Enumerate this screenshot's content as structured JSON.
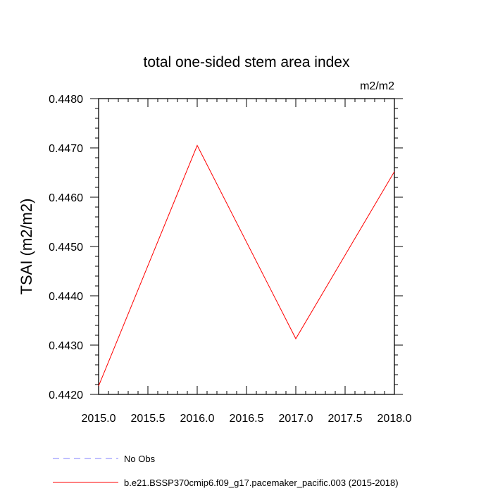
{
  "chart_data": {
    "type": "line",
    "title": "total one-sided stem area index",
    "units": "m2/m2",
    "xlabel": "",
    "ylabel": "TSAI  (m2/m2)",
    "xlim": [
      2015.0,
      2018.0
    ],
    "ylim": [
      0.442,
      0.448
    ],
    "xticks": [
      "2015.0",
      "2015.5",
      "2016.0",
      "2016.5",
      "2017.0",
      "2017.5",
      "2018.0"
    ],
    "yticks": [
      "0.4420",
      "0.4430",
      "0.4440",
      "0.4450",
      "0.4460",
      "0.4470",
      "0.4480"
    ],
    "series": [
      {
        "name": "b.e21.BSSP370cmip6.f09_g17.pacemaker_pacific.003 (2015-2018)",
        "color": "#ff0000",
        "style": "solid",
        "x": [
          2015,
          2016,
          2017,
          2018
        ],
        "y": [
          0.44217,
          0.44705,
          0.44313,
          0.44652
        ]
      }
    ],
    "legend": [
      {
        "label": "No Obs",
        "color": "#8080ff",
        "style": "dashed"
      },
      {
        "label": "b.e21.BSSP370cmip6.f09_g17.pacemaker_pacific.003 (2015-2018)",
        "color": "#ff0000",
        "style": "solid"
      }
    ],
    "legend_position": "bottom",
    "grid": false
  }
}
